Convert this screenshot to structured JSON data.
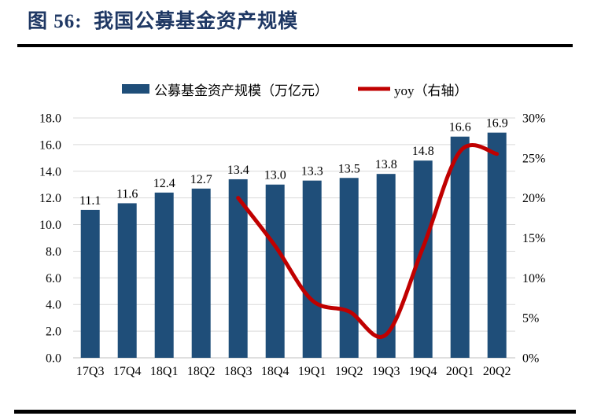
{
  "figure": {
    "title": "图 56:  我国公募基金资产规模"
  },
  "chart_data": {
    "type": "bar",
    "subtype": "bar+line-combo",
    "title": "我国公募基金资产规模",
    "categories": [
      "17Q3",
      "17Q4",
      "18Q1",
      "18Q2",
      "18Q3",
      "18Q4",
      "19Q1",
      "19Q2",
      "19Q3",
      "19Q4",
      "20Q1",
      "20Q2"
    ],
    "series": [
      {
        "name": "公募基金资产规模（万亿元）",
        "type": "bar",
        "axis": "left",
        "color": "#1f4e79",
        "values": [
          11.1,
          11.6,
          12.4,
          12.7,
          13.4,
          13.0,
          13.3,
          13.5,
          13.8,
          14.8,
          16.6,
          16.9
        ],
        "data_labels": [
          "11.1",
          "11.6",
          "12.4",
          "12.7",
          "13.4",
          "13.0",
          "13.3",
          "13.5",
          "13.8",
          "14.8",
          "16.6",
          "16.9"
        ]
      },
      {
        "name": "yoy（右轴）",
        "type": "line",
        "axis": "right",
        "color": "#c00000",
        "smooth": true,
        "values": [
          null,
          null,
          null,
          null,
          20.0,
          14.0,
          7.2,
          5.8,
          2.9,
          13.8,
          25.8,
          25.5
        ]
      }
    ],
    "left_axis": {
      "min": 0,
      "max": 18,
      "step": 2,
      "labels": [
        "0.0",
        "2.0",
        "4.0",
        "6.0",
        "8.0",
        "10.0",
        "12.0",
        "14.0",
        "16.0",
        "18.0"
      ]
    },
    "right_axis": {
      "min": 0,
      "max": 30,
      "step": 5,
      "labels": [
        "0%",
        "5%",
        "10%",
        "15%",
        "20%",
        "25%",
        "30%"
      ]
    },
    "grid": true,
    "gridline_color": "#d9d9d9",
    "axisline_color": "#bfbfbf",
    "legend_position": "top"
  }
}
